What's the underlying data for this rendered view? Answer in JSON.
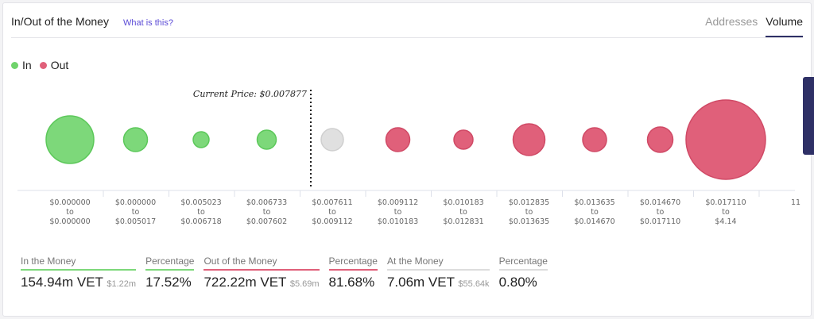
{
  "header": {
    "title": "In/Out of the Money",
    "help_link": "What is this?",
    "tabs": [
      "Addresses",
      "Volume"
    ],
    "active_tab": "Volume"
  },
  "legend": [
    {
      "label": "In",
      "color": "#6fd36b"
    },
    {
      "label": "Out",
      "color": "#e0607a"
    }
  ],
  "chart_data": {
    "type": "bubble",
    "current_price_label": "Current Price: $0.007877",
    "buckets": [
      {
        "from": "$0.000000",
        "to": "$0.000000",
        "status": "in",
        "size": 30
      },
      {
        "from": "$0.000000",
        "to": "$0.005017",
        "status": "in",
        "size": 15
      },
      {
        "from": "$0.005023",
        "to": "$0.006718",
        "status": "in",
        "size": 10
      },
      {
        "from": "$0.006733",
        "to": "$0.007602",
        "status": "in",
        "size": 12
      },
      {
        "from": "$0.007611",
        "to": "$0.009112",
        "status": "at",
        "size": 14
      },
      {
        "from": "$0.009112",
        "to": "$0.010183",
        "status": "out",
        "size": 15
      },
      {
        "from": "$0.010183",
        "to": "$0.012831",
        "status": "out",
        "size": 12
      },
      {
        "from": "$0.012835",
        "to": "$0.013635",
        "status": "out",
        "size": 20
      },
      {
        "from": "$0.013635",
        "to": "$0.014670",
        "status": "out",
        "size": 15
      },
      {
        "from": "$0.014670",
        "to": "$0.017110",
        "status": "out",
        "size": 16
      },
      {
        "from": "$0.017110",
        "to": "$4.14",
        "status": "out",
        "size": 50
      }
    ],
    "to_word": "to",
    "overflow_label": "11"
  },
  "colors": {
    "in": "#7dd87a",
    "in_stroke": "#5cc85a",
    "out": "#e0607a",
    "out_stroke": "#d04a66",
    "at": "#e0e0e0",
    "at_stroke": "#cfcfcf"
  },
  "stats": [
    {
      "label": "In the Money",
      "value": "154.94m VET",
      "sub": "$1.22m",
      "color": "#7dd87a"
    },
    {
      "label": "Percentage",
      "value": "17.52%",
      "color": "#7dd87a"
    },
    {
      "label": "Out of the Money",
      "value": "722.22m VET",
      "sub": "$5.69m",
      "color": "#e0607a"
    },
    {
      "label": "Percentage",
      "value": "81.68%",
      "color": "#e0607a"
    },
    {
      "label": "At the Money",
      "value": "7.06m VET",
      "sub": "$55.64k",
      "color": "#ddd"
    },
    {
      "label": "Percentage",
      "value": "0.80%",
      "color": "#ddd"
    }
  ]
}
